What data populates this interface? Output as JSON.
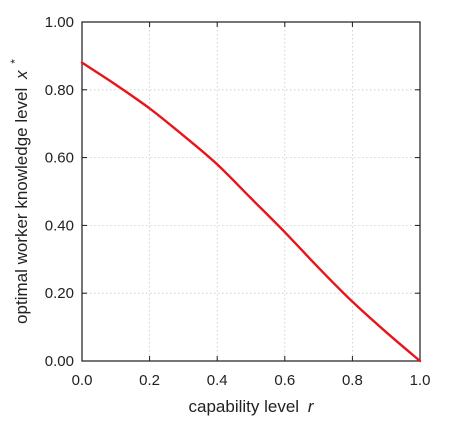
{
  "chart_data": {
    "type": "line",
    "title": "",
    "xlabel": "capability level",
    "xlabel_symbol": "r",
    "ylabel": "optimal worker knowledge level",
    "ylabel_symbol": "x",
    "ylabel_superscript": "*",
    "xlim": [
      0,
      1
    ],
    "ylim": [
      0,
      1
    ],
    "xticks": [
      0.0,
      0.2,
      0.4,
      0.6,
      0.8,
      1.0
    ],
    "xtick_labels": [
      "0.0",
      "0.2",
      "0.4",
      "0.6",
      "0.8",
      "1.0"
    ],
    "yticks": [
      0.0,
      0.2,
      0.4,
      0.6,
      0.8,
      1.0
    ],
    "ytick_labels": [
      "0.00",
      "0.20",
      "0.40",
      "0.60",
      "0.80",
      "1.00"
    ],
    "grid": true,
    "legend": "none",
    "series": [
      {
        "color": "#e8141a",
        "x": [
          0.0,
          0.1,
          0.2,
          0.3,
          0.4,
          0.5,
          0.6,
          0.7,
          0.8,
          0.9,
          1.0
        ],
        "y": [
          0.88,
          0.815,
          0.745,
          0.665,
          0.58,
          0.48,
          0.38,
          0.275,
          0.175,
          0.085,
          0.0
        ]
      }
    ]
  }
}
